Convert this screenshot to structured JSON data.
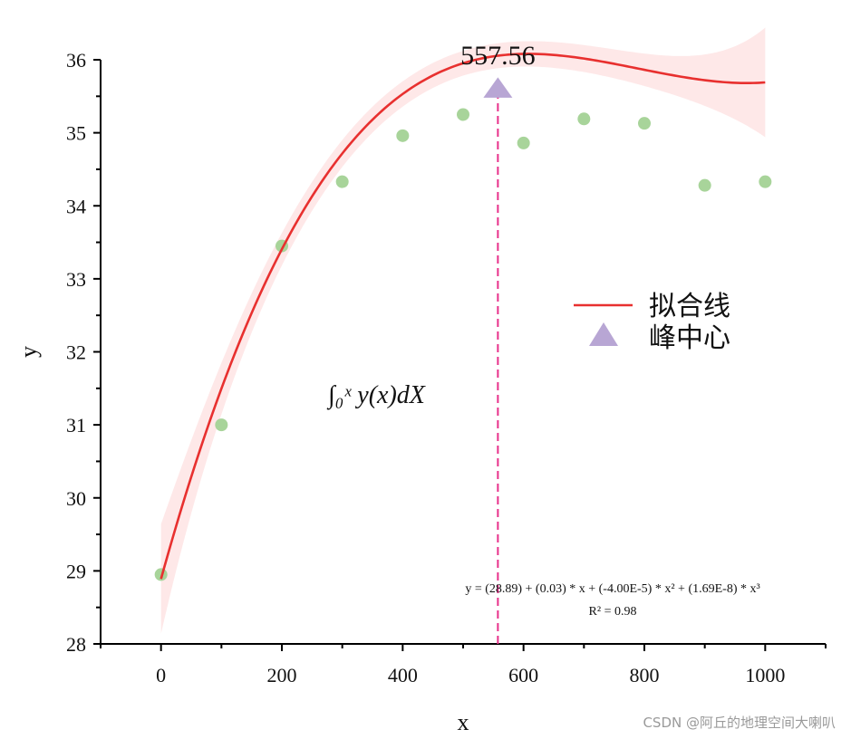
{
  "chart_data": {
    "type": "scatter",
    "xlabel": "x",
    "ylabel": "y",
    "xlim": [
      -100,
      1100
    ],
    "ylim": [
      28,
      36
    ],
    "xticks": [
      "0",
      "200",
      "400",
      "600",
      "800",
      "1000"
    ],
    "yticks": [
      "28",
      "29",
      "30",
      "31",
      "32",
      "33",
      "34",
      "35",
      "36"
    ],
    "points": {
      "x": [
        0,
        100,
        200,
        300,
        400,
        500,
        600,
        700,
        800,
        900,
        1000
      ],
      "y": [
        28.95,
        31.0,
        33.45,
        34.33,
        34.96,
        35.25,
        34.86,
        35.19,
        35.13,
        34.28,
        34.33
      ],
      "color": "#a8d49a"
    },
    "fit": {
      "name": "拟合线",
      "color": "#e8302f",
      "band_color": "#fde0e0",
      "coefficients": [
        28.89,
        0.0299,
        -4e-05,
        1.69e-08
      ]
    },
    "peak": {
      "name": "峰中心",
      "x": 557.56,
      "label": "557.56",
      "color": "#b8a6d4",
      "line_color": "#e8308a"
    },
    "legend_position": "right",
    "grid": false,
    "annotations": {
      "equation_line1": "y =  (28.89) + (0.03) * x + (-4.00E-5) * x² + (1.69E-8) * x³",
      "equation_line2": "R² = 0.98",
      "integral": "∫₀ˣ y(x)dX"
    }
  },
  "watermark": "CSDN @阿丘的地理空间大喇叭"
}
